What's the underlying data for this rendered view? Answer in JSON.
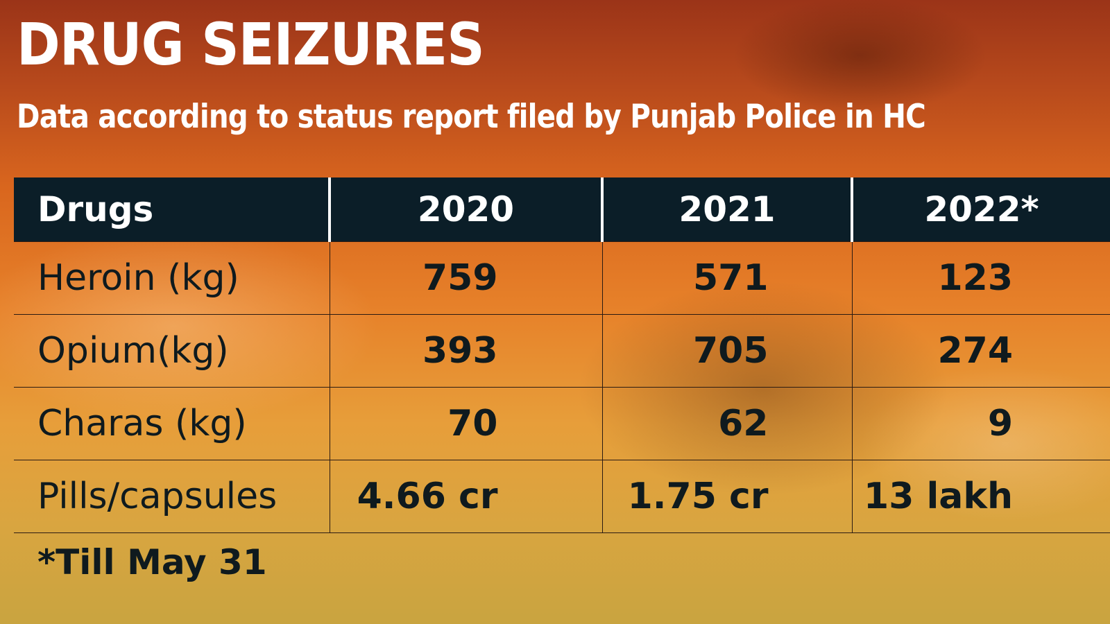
{
  "chart_data": {
    "type": "table",
    "title": "DRUG SEIZURES",
    "subtitle": "Data according to status report filed by Punjab Police in HC",
    "columns": [
      "Drugs",
      "2020",
      "2021",
      "2022*"
    ],
    "rows": [
      {
        "label": "Heroin (kg)",
        "values": [
          "759",
          "571",
          "123"
        ]
      },
      {
        "label": "Opium(kg)",
        "values": [
          "393",
          "705",
          "274"
        ]
      },
      {
        "label": "Charas (kg)",
        "values": [
          "70",
          "62",
          "9"
        ]
      },
      {
        "label": "Pills/capsules",
        "values": [
          "4.66 cr",
          "1.75 cr",
          "13 lakh"
        ]
      }
    ],
    "footnote": "*Till May 31"
  },
  "colors": {
    "header_background": "#0b1e28",
    "title_text": "#ffffff",
    "body_text": "#0f1a1e",
    "background_top": "#9b3418",
    "background_bottom": "#c9a440"
  }
}
